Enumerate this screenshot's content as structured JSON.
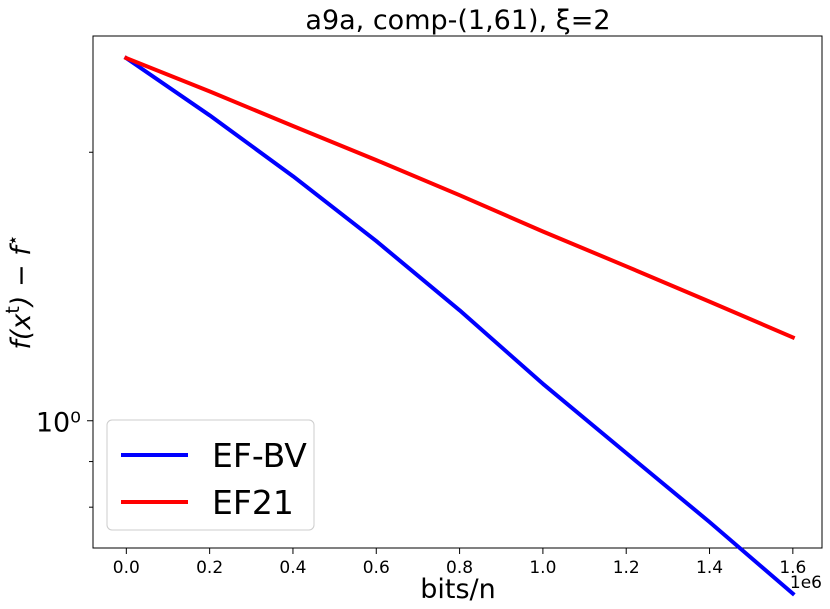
{
  "chart_data": {
    "type": "line",
    "title": "a9a, comp-(1,61), ξ=2",
    "xlabel": "bits/n",
    "ylabel": "f(xᵗ) − f*",
    "x_offset_label": "1e6",
    "x_tick_labels": [
      "0.0",
      "0.2",
      "0.4",
      "0.6",
      "0.8",
      "1.0",
      "1.2",
      "1.4",
      "1.6"
    ],
    "x_ticks": [
      0.0,
      0.2,
      0.4,
      0.6,
      0.8,
      1.0,
      1.2,
      1.4,
      1.6
    ],
    "y_scale": "log",
    "y_tick_label": "10⁰",
    "y_major_tick": 1.0,
    "xlim": [
      -0.08,
      1.67
    ],
    "ylim": [
      0.72,
      2.7
    ],
    "legend_position": "lower-left",
    "series": [
      {
        "name": "EF-BV",
        "color": "#0000ff",
        "x": [
          0.0,
          0.2,
          0.4,
          0.6,
          0.8,
          1.0,
          1.2,
          1.4,
          1.6
        ],
        "y": [
          2.55,
          2.2,
          1.88,
          1.59,
          1.33,
          1.1,
          0.92,
          0.77,
          0.64
        ]
      },
      {
        "name": "EF21",
        "color": "#ff0000",
        "x": [
          0.0,
          0.2,
          0.4,
          0.6,
          0.8,
          1.0,
          1.2,
          1.4,
          1.6
        ],
        "y": [
          2.55,
          2.34,
          2.14,
          1.96,
          1.79,
          1.63,
          1.49,
          1.36,
          1.24
        ]
      }
    ]
  }
}
